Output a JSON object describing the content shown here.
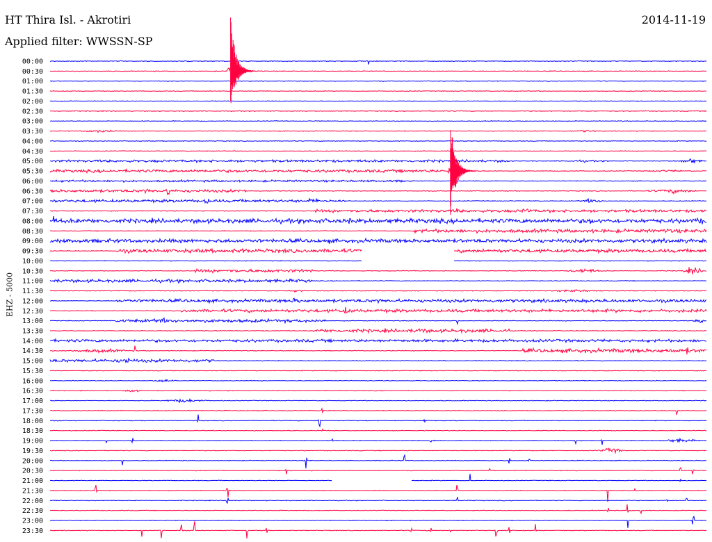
{
  "header": {
    "station": "HT Thira Isl. - Akrotiri",
    "date": "2014-11-19",
    "filter": "Applied filter: WWSSN-SP"
  },
  "chart_data": {
    "type": "line",
    "title": "HT Thira Isl. - Akrotiri",
    "ylabel": "EHZ - 5000",
    "colors": {
      "even_rows": "#0000ff",
      "odd_rows": "#ff0040"
    },
    "rows": [
      "00:00",
      "00:30",
      "01:00",
      "01:30",
      "02:00",
      "02:30",
      "03:00",
      "03:30",
      "04:00",
      "04:30",
      "05:00",
      "05:30",
      "06:00",
      "06:30",
      "07:00",
      "07:30",
      "08:00",
      "08:30",
      "09:00",
      "09:30",
      "10:00",
      "10:30",
      "11:00",
      "11:30",
      "12:00",
      "12:30",
      "13:00",
      "13:30",
      "14:00",
      "14:30",
      "15:00",
      "15:30",
      "16:00",
      "16:30",
      "17:00",
      "17:30",
      "18:00",
      "18:30",
      "19:00",
      "19:30",
      "20:00",
      "20:30",
      "21:00",
      "21:30",
      "22:00",
      "22:30",
      "23:00",
      "23:30"
    ],
    "events": [
      {
        "row": "00:30",
        "position": 0.09,
        "amplitude": "large",
        "note": "clipped event spanning 00:00-02:00"
      },
      {
        "row": "05:30",
        "position": 0.62,
        "amplitude": "large",
        "note": "clipped event spanning 03:00-07:30"
      }
    ]
  }
}
